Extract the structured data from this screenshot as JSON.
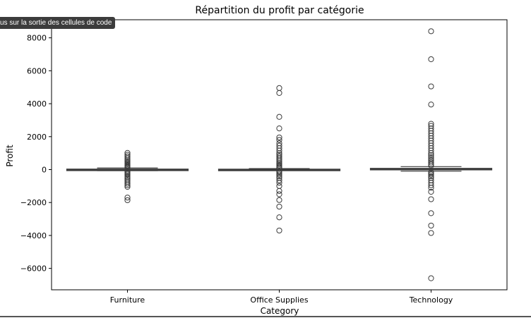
{
  "tooltip": {
    "text": "us sur la sortie des cellules de code"
  },
  "colors": {
    "box_edge": "#3b3b3b",
    "box_fill": "#3b3b3b",
    "axes": "#000000"
  },
  "chart_data": {
    "type": "box",
    "title": "Répartition du profit par catégorie",
    "xlabel": "Category",
    "ylabel": "Profit",
    "ylim": [
      -6600,
      8400
    ],
    "yticks": [
      8000,
      6000,
      4000,
      2000,
      0,
      -2000,
      -4000,
      -6000
    ],
    "ytick_labels": [
      "8000",
      "6000",
      "4000",
      "2000",
      "0",
      "−2000",
      "−4000",
      "−6000"
    ],
    "grid": false,
    "categories": [
      "Furniture",
      "Office Supplies",
      "Technology"
    ],
    "boxes": [
      {
        "category": "Furniture",
        "q1": -10,
        "median": 8,
        "q3": 30,
        "whisker_low": -65,
        "whisker_high": 95,
        "outliers": [
          1010,
          900,
          800,
          700,
          600,
          520,
          450,
          380,
          320,
          260,
          200,
          150,
          120,
          -120,
          -180,
          -240,
          -300,
          -380,
          -460,
          -550,
          -650,
          -750,
          -850,
          -950,
          -1050,
          -1700,
          -1860
        ]
      },
      {
        "category": "Office Supplies",
        "q1": -5,
        "median": 7,
        "q3": 25,
        "whisker_low": -40,
        "whisker_high": 60,
        "outliers": [
          4950,
          4650,
          3200,
          2500,
          1950,
          1800,
          1600,
          1450,
          1300,
          1150,
          1000,
          900,
          800,
          700,
          600,
          500,
          400,
          320,
          250,
          180,
          120,
          90,
          -90,
          -150,
          -220,
          -300,
          -400,
          -500,
          -650,
          -800,
          -1000,
          -1300,
          -1500,
          -1850,
          -2250,
          -2900,
          -3700
        ]
      },
      {
        "category": "Technology",
        "q1": 5,
        "median": 25,
        "q3": 75,
        "whisker_low": -100,
        "whisker_high": 180,
        "outliers": [
          8400,
          6700,
          5050,
          3950,
          2780,
          2650,
          2500,
          2350,
          2200,
          2050,
          1900,
          1750,
          1600,
          1450,
          1300,
          1150,
          1000,
          880,
          760,
          650,
          540,
          430,
          330,
          240,
          -160,
          -220,
          -300,
          -400,
          -500,
          -650,
          -800,
          -950,
          -1100,
          -1350,
          -1800,
          -2650,
          -3400,
          -3850,
          -6600
        ]
      }
    ]
  }
}
